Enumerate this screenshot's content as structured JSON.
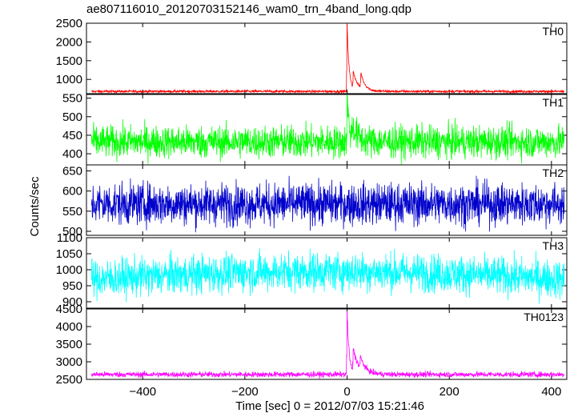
{
  "title": "ae807116010_20120703152146_wam0_trn_4band_long.qdp",
  "xlabel": "Time [sec] 0 = 2012/07/03 15:21:46",
  "ylabel": "Counts/sec",
  "chart_data": {
    "type": "line",
    "title": "ae807116010_20120703152146_wam0_trn_4band_long.qdp",
    "xlabel": "Time [sec] 0 = 2012/07/03 15:21:46",
    "ylabel": "Counts/sec",
    "xlim": [
      -510,
      430
    ],
    "xticks": [
      -400,
      -200,
      0,
      200,
      400
    ],
    "grid": false,
    "panels": [
      {
        "name": "TH0",
        "color": "#ff0000",
        "ylim": [
          620,
          2500
        ],
        "yticks": [
          1000,
          1500,
          2000,
          2500
        ],
        "baseline": 680,
        "noise": 18,
        "flare": [
          {
            "t": 0,
            "dt": 4,
            "peak": 2500
          },
          {
            "t": 12,
            "dt": 10,
            "peak": 1150
          },
          {
            "t": 27,
            "dt": 8,
            "peak": 1080
          }
        ]
      },
      {
        "name": "TH1",
        "color": "#00ff00",
        "ylim": [
          370,
          560
        ],
        "yticks": [
          400,
          450,
          500,
          550
        ],
        "baseline": 432,
        "noise": 22,
        "flare": [
          {
            "t": 0,
            "dt": 4,
            "peak": 560
          },
          {
            "t": 10,
            "dt": 12,
            "peak": 470
          }
        ]
      },
      {
        "name": "TH2",
        "color": "#0000cc",
        "ylim": [
          490,
          665
        ],
        "yticks": [
          500,
          550,
          600,
          650
        ],
        "baseline": 568,
        "noise": 26,
        "flare": []
      },
      {
        "name": "TH3",
        "color": "#00ffff",
        "ylim": [
          880,
          1100
        ],
        "yticks": [
          900,
          950,
          1000,
          1050,
          1100
        ],
        "baseline": 970,
        "noise": 30,
        "trend": 25,
        "flare": []
      },
      {
        "name": "TH0123",
        "color": "#ff00ff",
        "ylim": [
          2500,
          4500
        ],
        "yticks": [
          2500,
          3000,
          3500,
          4000,
          4500
        ],
        "baseline": 2640,
        "noise": 40,
        "flare": [
          {
            "t": 0,
            "dt": 4,
            "peak": 4450
          },
          {
            "t": 12,
            "dt": 12,
            "peak": 3300
          },
          {
            "t": 26,
            "dt": 10,
            "peak": 2950
          }
        ]
      }
    ]
  }
}
